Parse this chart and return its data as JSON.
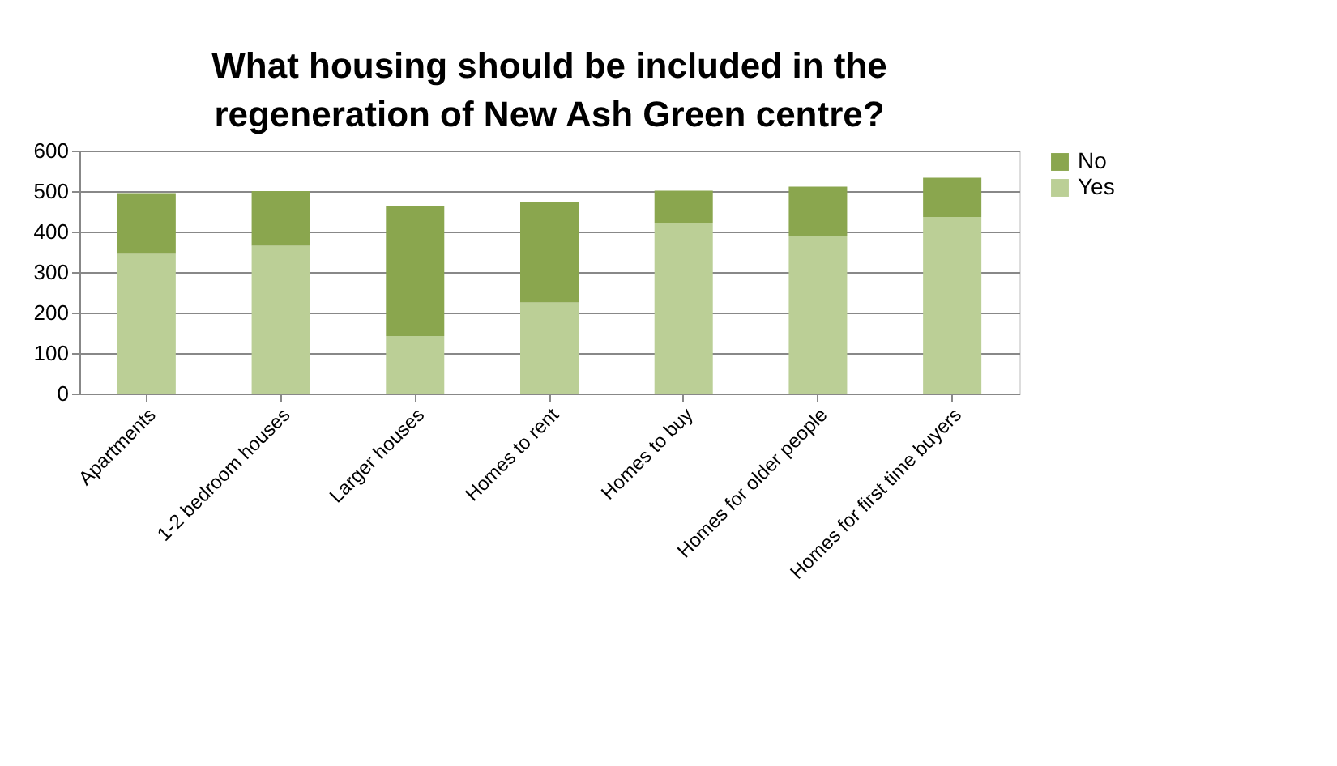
{
  "chart_data": {
    "type": "bar",
    "stacked": true,
    "title": "What housing should be included in the regeneration of New Ash Green centre?",
    "categories": [
      "Apartments",
      "1-2 bedroom houses",
      "Larger houses",
      "Homes to rent",
      "Homes to buy",
      "Homes for older people",
      "Homes for first time buyers"
    ],
    "series": [
      {
        "name": "Yes",
        "color": "#bbcf96",
        "values": [
          345,
          365,
          142,
          225,
          421,
          389,
          436
        ]
      },
      {
        "name": "No",
        "color": "#8aa64e",
        "values": [
          150,
          135,
          321,
          248,
          80,
          122,
          97
        ]
      }
    ],
    "ylim": [
      0,
      600
    ],
    "yticks": [
      0,
      100,
      200,
      300,
      400,
      500,
      600
    ],
    "grid": "y",
    "legend": "right"
  }
}
